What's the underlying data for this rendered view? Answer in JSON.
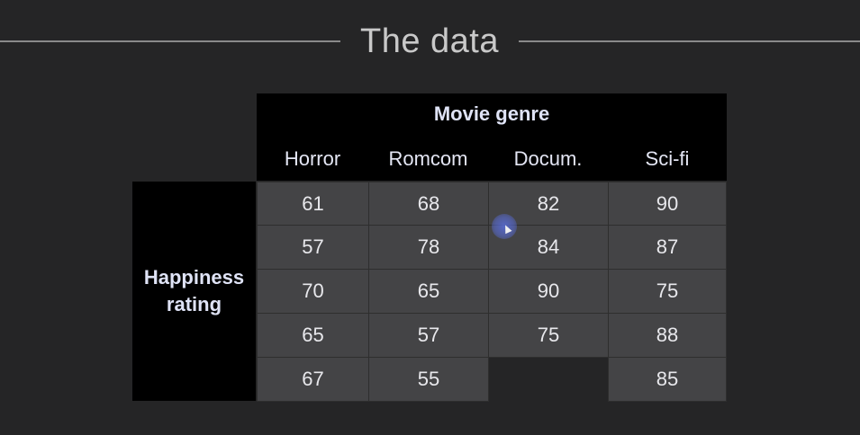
{
  "title": "The data",
  "table": {
    "column_group_label": "Movie genre",
    "row_group_label_line1": "Happiness",
    "row_group_label_line2": "rating",
    "columns": [
      "Horror",
      "Romcom",
      "Docum.",
      "Sci-fi"
    ],
    "rows": [
      [
        "61",
        "68",
        "82",
        "90"
      ],
      [
        "57",
        "78",
        "84",
        "87"
      ],
      [
        "70",
        "65",
        "90",
        "75"
      ],
      [
        "65",
        "57",
        "75",
        "88"
      ],
      [
        "67",
        "55",
        "",
        "85"
      ]
    ]
  },
  "colors": {
    "background": "#252526",
    "header_background": "#000000",
    "cell_background": "#444446",
    "cursor_highlight": "#5a6edc"
  }
}
